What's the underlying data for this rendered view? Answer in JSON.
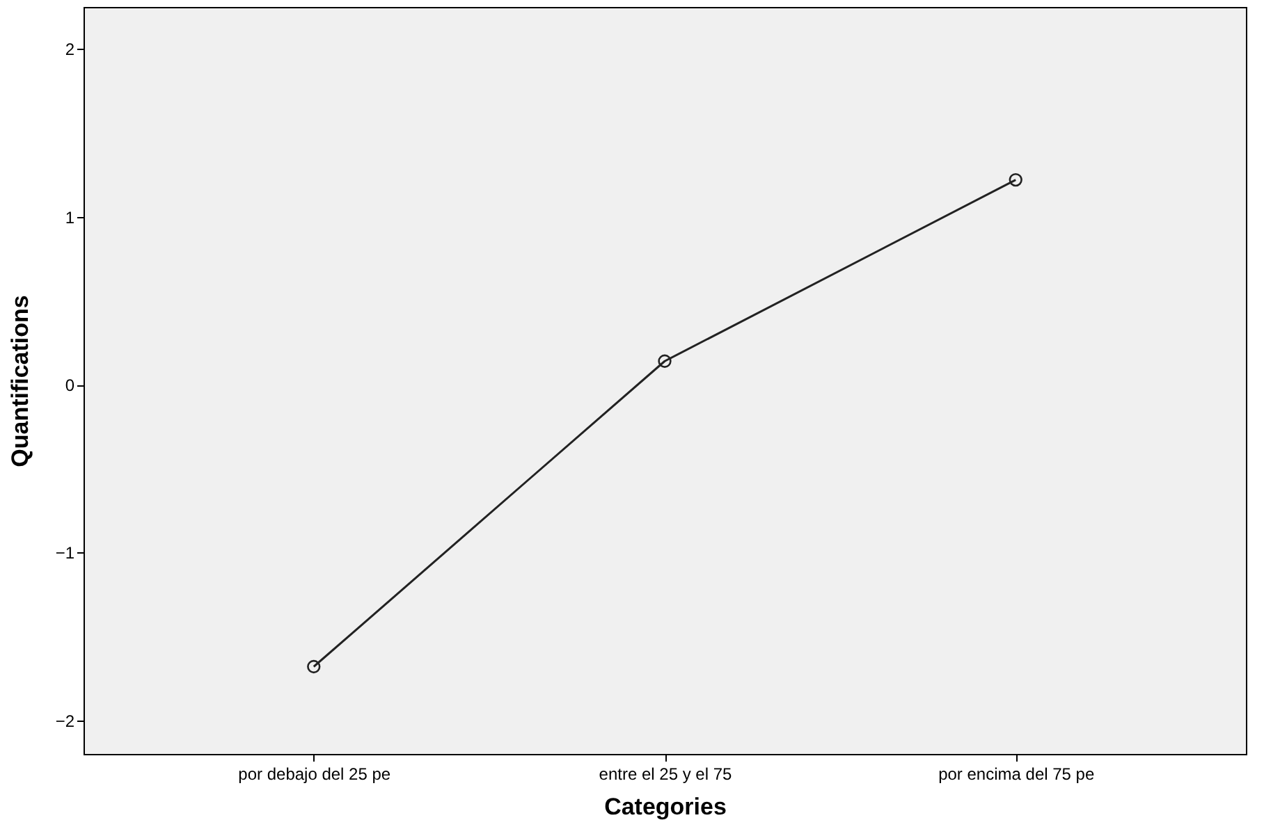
{
  "chart_data": {
    "type": "line",
    "xlabel": "Categories",
    "ylabel": "Quantifications",
    "categories": [
      "por debajo del 25 pe",
      "entre el 25 y el 75",
      "por encima del 75 pe"
    ],
    "series": [
      {
        "color": "#222222",
        "values": [
          -1.68,
          0.14,
          1.22
        ]
      }
    ],
    "ylim": [
      -2.2,
      2.25
    ],
    "yticks": [
      -2,
      -1,
      0,
      1,
      2
    ],
    "grid": false,
    "marker": "circle",
    "line_style": "solid"
  }
}
